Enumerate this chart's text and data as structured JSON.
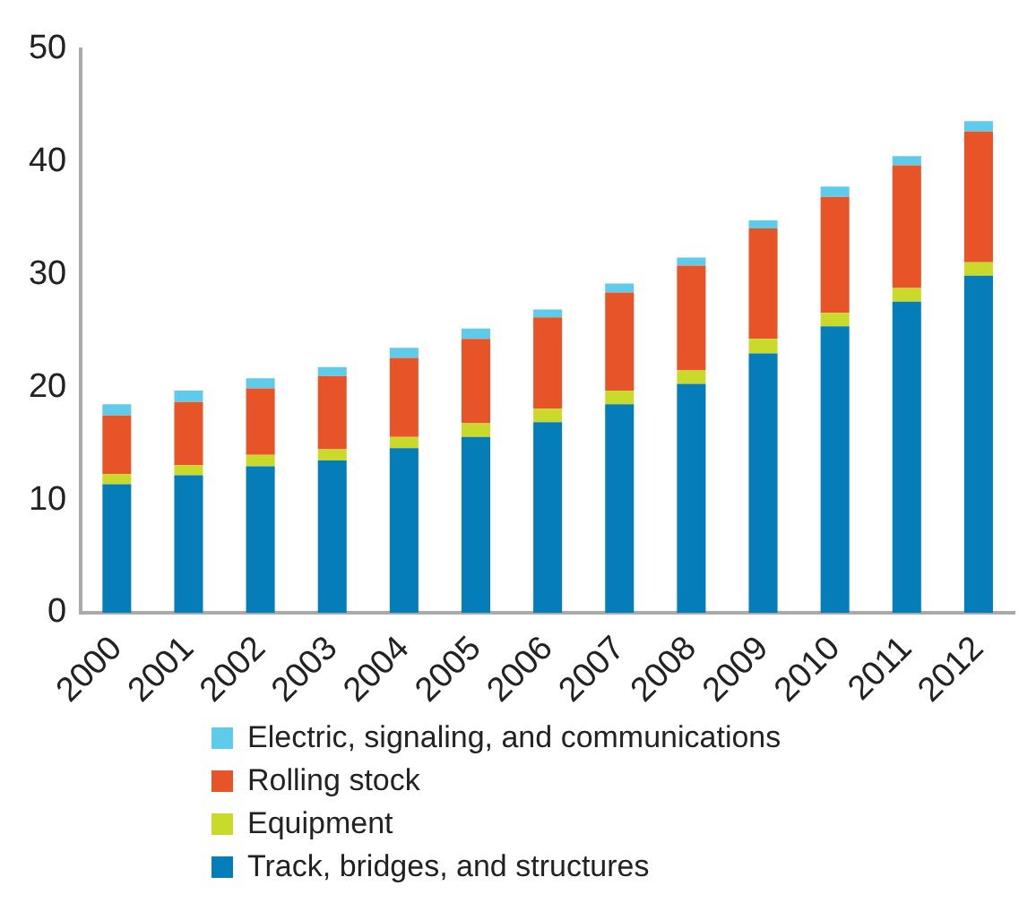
{
  "chart_data": {
    "type": "bar",
    "stacked": true,
    "legend": "bottom",
    "grid": false,
    "categories": [
      "2000",
      "2001",
      "2002",
      "2003",
      "2004",
      "2005",
      "2006",
      "2007",
      "2008",
      "2009",
      "2010",
      "2011",
      "2012"
    ],
    "ylim": [
      0,
      50
    ],
    "yticks": [
      0,
      10,
      20,
      30,
      40,
      50
    ],
    "series": [
      {
        "name": "Track, bridges, and structures",
        "color": "#047db8",
        "values": [
          11.4,
          12.2,
          13.0,
          13.5,
          14.6,
          15.6,
          16.9,
          18.5,
          20.3,
          23.0,
          25.4,
          27.6,
          29.9
        ]
      },
      {
        "name": "Equipment",
        "color": "#c9da2b",
        "values": [
          0.9,
          0.9,
          1.0,
          1.0,
          1.0,
          1.2,
          1.2,
          1.2,
          1.2,
          1.3,
          1.2,
          1.2,
          1.2
        ]
      },
      {
        "name": "Rolling stock",
        "color": "#e65428",
        "values": [
          5.2,
          5.6,
          5.9,
          6.5,
          7.0,
          7.5,
          8.1,
          8.7,
          9.3,
          9.8,
          10.3,
          10.9,
          11.6
        ]
      },
      {
        "name": "Electric, signaling, and communications",
        "color": "#5fcbeb",
        "values": [
          1.0,
          1.0,
          0.9,
          0.8,
          0.9,
          0.9,
          0.7,
          0.8,
          0.7,
          0.7,
          0.9,
          0.8,
          0.9
        ]
      }
    ]
  }
}
